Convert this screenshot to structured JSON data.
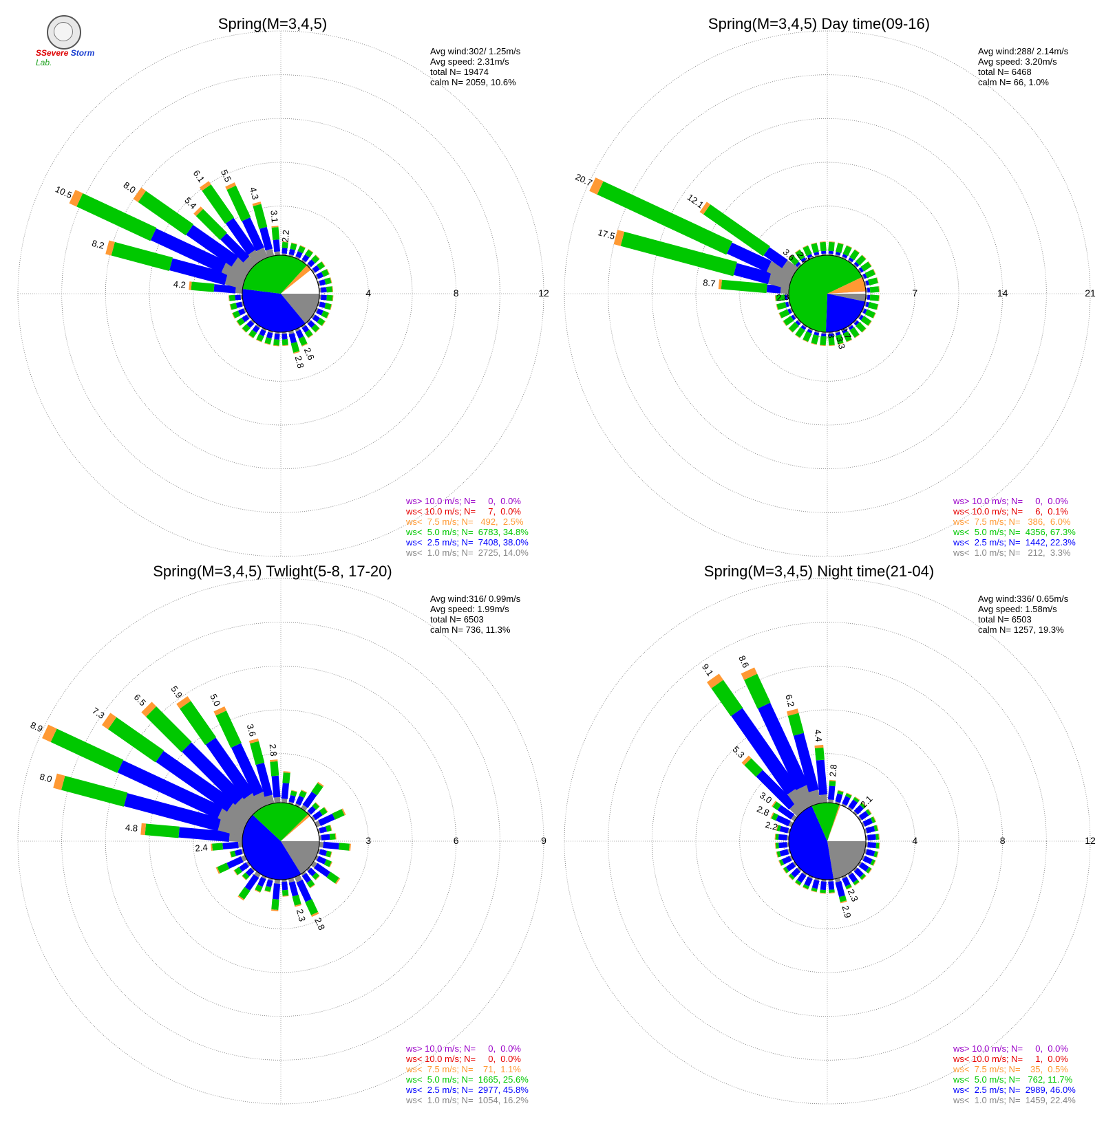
{
  "logo": {
    "line1": "SSevere",
    "line2": "Storm",
    "line3": "Lab."
  },
  "legend_colors": {
    "gt10": "#9a00c8",
    "lt10": "#e60000",
    "lt7_5": "#ff9933",
    "lt5": "#00c800",
    "lt2_5": "#0000ff",
    "lt1": "#888888"
  },
  "chart_data": [
    {
      "type": "windrose",
      "title": "Spring(M=3,4,5)",
      "rmax": 12,
      "rings": [
        4,
        8,
        12
      ],
      "stats": [
        "Avg wind:302/ 1.25m/s",
        "Avg speed: 2.31m/s",
        "total N=       19474",
        "calm N=   2059,  10.6%"
      ],
      "legend": [
        "ws> 10.0 m/s; N=     0,  0.0%",
        "ws< 10.0 m/s; N=     7,  0.0%",
        "ws<  7.5 m/s; N=   492,  2.5%",
        "ws<  5.0 m/s; N=  6783, 34.8%",
        "ws<  2.5 m/s; N=  7408, 38.0%",
        "ws<  1.0 m/s; N=  2725, 14.0%"
      ],
      "bar_labels": [
        {
          "dir": 295,
          "value": 10.5
        },
        {
          "dir": 305,
          "value": 8.0
        },
        {
          "dir": 325,
          "value": 6.1
        },
        {
          "dir": 335,
          "value": 5.5
        },
        {
          "dir": 315,
          "value": 5.4
        },
        {
          "dir": 345,
          "value": 4.3
        },
        {
          "dir": 285,
          "value": 8.2
        },
        {
          "dir": 275,
          "value": 4.2
        },
        {
          "dir": 355,
          "value": 3.1
        },
        {
          "dir": 5,
          "value": 2.2
        },
        {
          "dir": 165,
          "value": 2.8
        },
        {
          "dir": 155,
          "value": 2.6
        }
      ],
      "inner_pie": {
        "lt1": 14.0,
        "lt2_5": 38.0,
        "lt5": 34.8,
        "lt7_5": 2.5,
        "lt10": 0.0,
        "gt10": 0.0
      }
    },
    {
      "type": "windrose",
      "title": "Spring(M=3,4,5) Day time(09-16)",
      "rmax": 21,
      "rings": [
        7,
        14,
        21
      ],
      "stats": [
        "Avg wind:288/ 2.14m/s",
        "Avg speed: 3.20m/s",
        "total N=        6468",
        "calm N=     66,   1.0%"
      ],
      "legend": [
        "ws> 10.0 m/s; N=     0,  0.0%",
        "ws< 10.0 m/s; N=     6,  0.1%",
        "ws<  7.5 m/s; N=   386,  6.0%",
        "ws<  5.0 m/s; N=  4356, 67.3%",
        "ws<  2.5 m/s; N=  1442, 22.3%",
        "ws<  1.0 m/s; N=   212,  3.3%"
      ],
      "bar_labels": [
        {
          "dir": 295,
          "value": 20.7
        },
        {
          "dir": 285,
          "value": 17.5
        },
        {
          "dir": 305,
          "value": 12.1
        },
        {
          "dir": 275,
          "value": 8.7
        },
        {
          "dir": 265,
          "value": 2.8
        },
        {
          "dir": 315,
          "value": 3.6
        },
        {
          "dir": 325,
          "value": 2.7
        },
        {
          "dir": 335,
          "value": 2.0
        },
        {
          "dir": 175,
          "value": 2.3
        },
        {
          "dir": 165,
          "value": 3.3
        },
        {
          "dir": 155,
          "value": 2.7
        }
      ],
      "inner_pie": {
        "lt1": 3.3,
        "lt2_5": 22.3,
        "lt5": 67.3,
        "lt7_5": 6.0,
        "lt10": 0.1,
        "gt10": 0.0
      }
    },
    {
      "type": "windrose",
      "title": "Spring(M=3,4,5) Twlight(5-8, 17-20)",
      "rmax": 9,
      "rings": [
        3,
        6,
        9
      ],
      "stats": [
        "Avg wind:316/ 0.99m/s",
        "Avg speed: 1.99m/s",
        "total N=        6503",
        "calm N=    736,  11.3%"
      ],
      "legend": [
        "ws> 10.0 m/s; N=     0,  0.0%",
        "ws< 10.0 m/s; N=     0,  0.0%",
        "ws<  7.5 m/s; N=    71,  1.1%",
        "ws<  5.0 m/s; N=  1665, 25.6%",
        "ws<  2.5 m/s; N=  2977, 45.8%",
        "ws<  1.0 m/s; N=  1054, 16.2%"
      ],
      "bar_labels": [
        {
          "dir": 295,
          "value": 8.9
        },
        {
          "dir": 285,
          "value": 8.0
        },
        {
          "dir": 305,
          "value": 7.3
        },
        {
          "dir": 315,
          "value": 6.5
        },
        {
          "dir": 325,
          "value": 5.9
        },
        {
          "dir": 335,
          "value": 5.0
        },
        {
          "dir": 275,
          "value": 4.8
        },
        {
          "dir": 345,
          "value": 3.6
        },
        {
          "dir": 355,
          "value": 2.8
        },
        {
          "dir": 265,
          "value": 2.4
        },
        {
          "dir": 165,
          "value": 2.3
        },
        {
          "dir": 155,
          "value": 2.8
        }
      ],
      "inner_pie": {
        "lt1": 16.2,
        "lt2_5": 45.8,
        "lt5": 25.6,
        "lt7_5": 1.1,
        "lt10": 0.0,
        "gt10": 0.0
      }
    },
    {
      "type": "windrose",
      "title": "Spring(M=3,4,5) Night time(21-04)",
      "rmax": 12,
      "rings": [
        4,
        8,
        12
      ],
      "stats": [
        "Avg wind:336/ 0.65m/s",
        "Avg speed: 1.58m/s",
        "total N=        6503",
        "calm N=   1257,  19.3%"
      ],
      "legend": [
        "ws> 10.0 m/s; N=     0,  0.0%",
        "ws< 10.0 m/s; N=     1,  0.0%",
        "ws<  7.5 m/s; N=    35,  0.5%",
        "ws<  5.0 m/s; N=   762, 11.7%",
        "ws<  2.5 m/s; N=  2989, 46.0%",
        "ws<  1.0 m/s; N=  1459, 22.4%"
      ],
      "bar_labels": [
        {
          "dir": 325,
          "value": 9.1
        },
        {
          "dir": 335,
          "value": 8.6
        },
        {
          "dir": 345,
          "value": 6.2
        },
        {
          "dir": 355,
          "value": 4.4
        },
        {
          "dir": 315,
          "value": 5.3
        },
        {
          "dir": 5,
          "value": 2.8
        },
        {
          "dir": 305,
          "value": 3.0
        },
        {
          "dir": 295,
          "value": 2.8
        },
        {
          "dir": 285,
          "value": 2.2
        },
        {
          "dir": 45,
          "value": 2.1
        },
        {
          "dir": 165,
          "value": 2.9
        },
        {
          "dir": 155,
          "value": 2.3
        }
      ],
      "inner_pie": {
        "lt1": 22.4,
        "lt2_5": 46.0,
        "lt5": 11.7,
        "lt7_5": 0.5,
        "lt10": 0.0,
        "gt10": 0.0
      }
    }
  ]
}
